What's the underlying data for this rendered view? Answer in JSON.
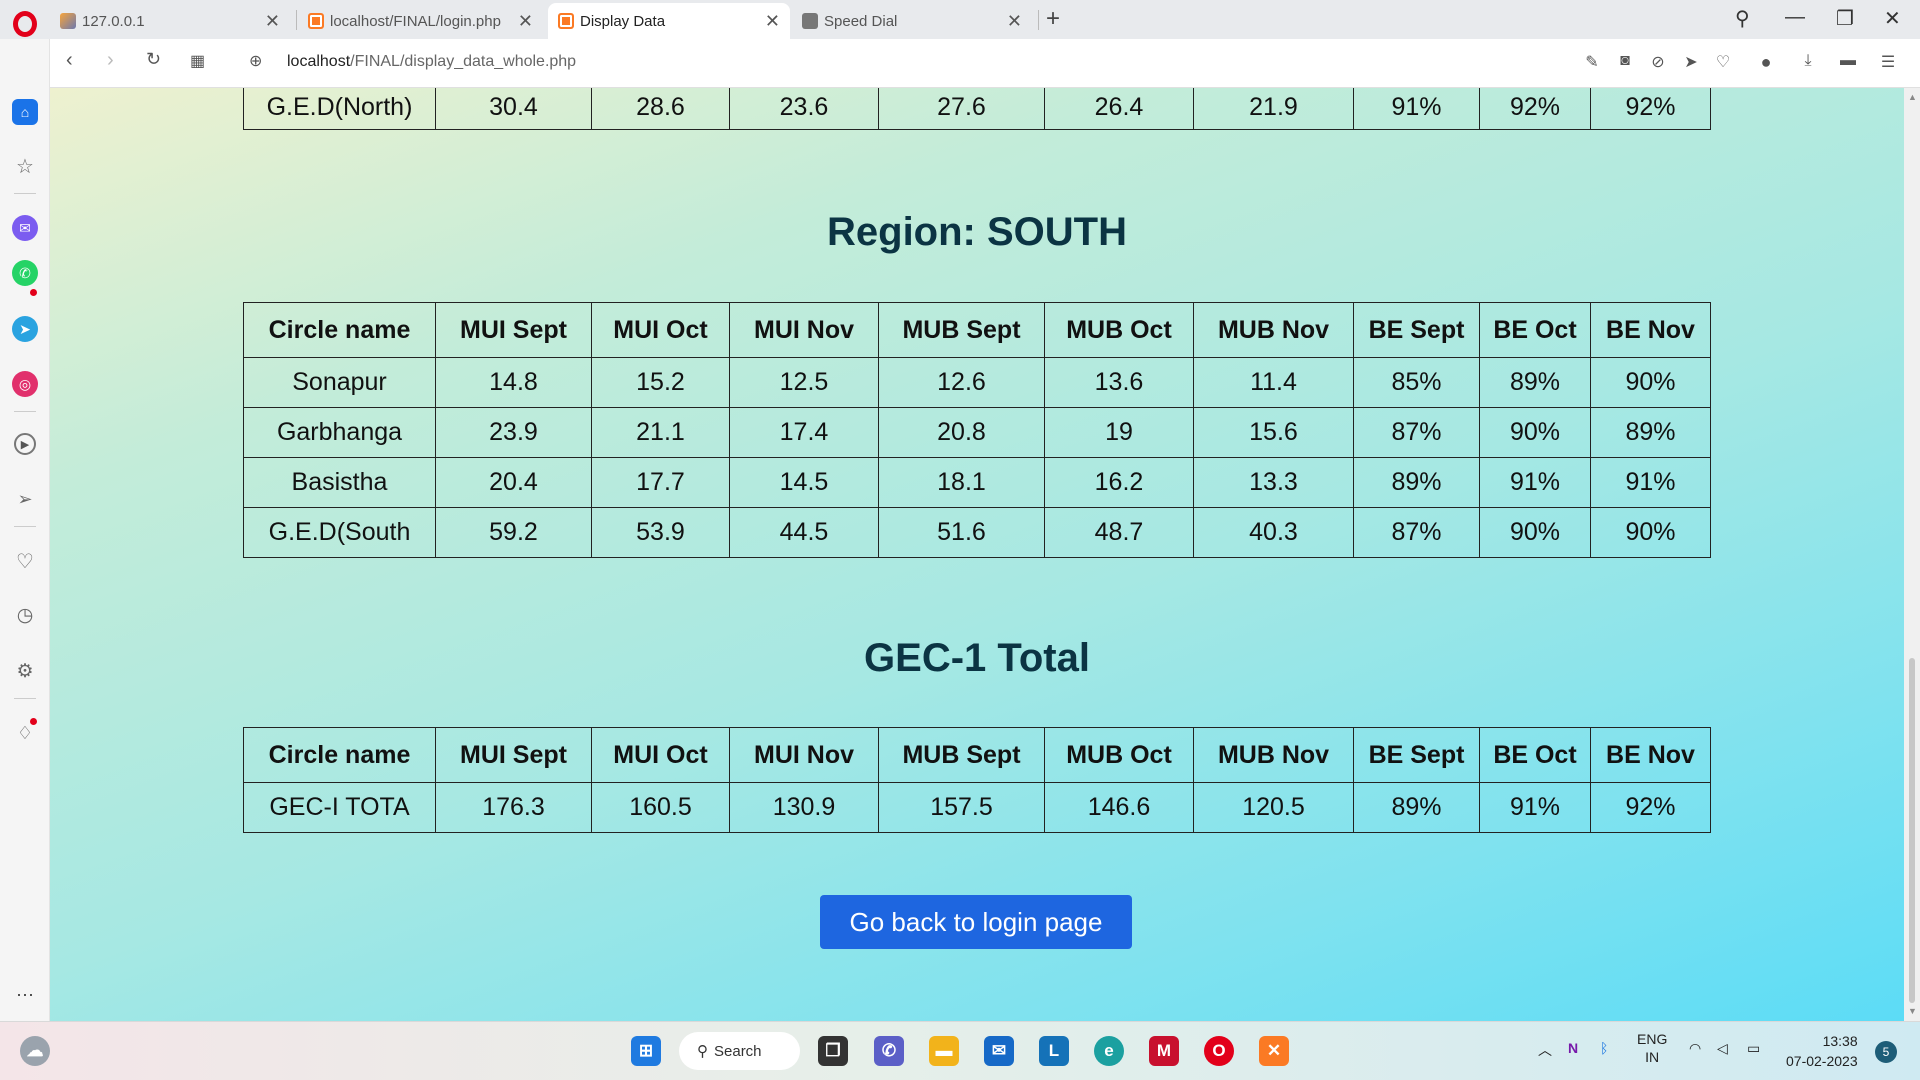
{
  "browser": {
    "tabs": [
      {
        "title": "127.0.0.1",
        "favicon": "phpmyadmin-icon",
        "active": false
      },
      {
        "title": "localhost/FINAL/login.php",
        "favicon": "xampp-icon",
        "active": false
      },
      {
        "title": "Display Data",
        "favicon": "xampp-icon",
        "active": true
      },
      {
        "title": "Speed Dial",
        "favicon": "speed-dial-icon",
        "active": false
      }
    ],
    "url_host": "localhost",
    "url_path": "/FINAL/display_data_whole.php"
  },
  "page": {
    "north_partial_row": [
      "G.E.D(North)",
      "30.4",
      "28.6",
      "23.6",
      "27.6",
      "26.4",
      "21.9",
      "91%",
      "92%",
      "92%"
    ],
    "south": {
      "heading": "Region: SOUTH",
      "headers": [
        "Circle name",
        "MUI Sept",
        "MUI Oct",
        "MUI Nov",
        "MUB Sept",
        "MUB Oct",
        "MUB Nov",
        "BE Sept",
        "BE Oct",
        "BE Nov"
      ],
      "rows": [
        [
          "Sonapur",
          "14.8",
          "15.2",
          "12.5",
          "12.6",
          "13.6",
          "11.4",
          "85%",
          "89%",
          "90%"
        ],
        [
          "Garbhanga",
          "23.9",
          "21.1",
          "17.4",
          "20.8",
          "19",
          "15.6",
          "87%",
          "90%",
          "89%"
        ],
        [
          "Basistha",
          "20.4",
          "17.7",
          "14.5",
          "18.1",
          "16.2",
          "13.3",
          "89%",
          "91%",
          "91%"
        ],
        [
          "G.E.D(South",
          "59.2",
          "53.9",
          "44.5",
          "51.6",
          "48.7",
          "40.3",
          "87%",
          "90%",
          "90%"
        ]
      ]
    },
    "total": {
      "heading": "GEC-1 Total",
      "headers": [
        "Circle name",
        "MUI Sept",
        "MUI Oct",
        "MUI Nov",
        "MUB Sept",
        "MUB Oct",
        "MUB Nov",
        "BE Sept",
        "BE Oct",
        "BE Nov"
      ],
      "rows": [
        [
          "GEC-I TOTA",
          "176.3",
          "160.5",
          "130.9",
          "157.5",
          "146.6",
          "120.5",
          "89%",
          "91%",
          "92%"
        ]
      ]
    },
    "back_button": "Go back to login page"
  },
  "taskbar": {
    "search_label": "Search",
    "lang_line1": "ENG",
    "lang_line2": "IN",
    "time": "13:38",
    "date": "07-02-2023",
    "notification_count": "5"
  },
  "colors": {
    "accent": "#1e66e0",
    "heading": "#0b3443",
    "opera_red": "#e2001a"
  }
}
